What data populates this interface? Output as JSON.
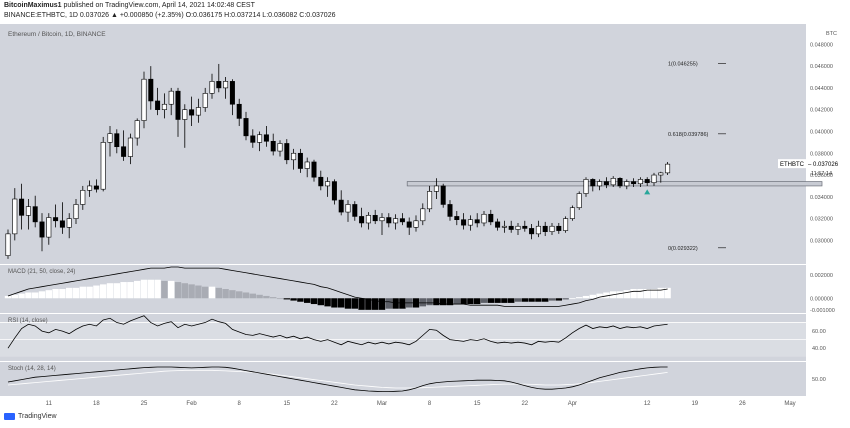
{
  "header": {
    "user": "BitcoinMaximus1",
    "published": "published on TradingView.com, April 14, 2021 14:02:48 CEST",
    "symbol_line": "BINANCE:ETHBTC, 1D 0.037026 ▲ +0.000850 (+2.35%) O:0.036175 H:0.037214 L:0.036082 C:0.037026"
  },
  "footer": {
    "brand": "TradingView"
  },
  "colors": {
    "background": "#d1d4dc",
    "candle_up": "#ffffff",
    "candle_down": "#000000",
    "line": "#000000",
    "rsi_line": "#000000",
    "stoch_d": "#ffffff",
    "arrow": "#26a69a"
  },
  "chart_data": {
    "type": "candlestick",
    "title": "Ethereum / Bitcoin, 1D, BINANCE",
    "symbol": "ETHBTC",
    "last_price_label": "0.037026",
    "countdown_label": "11:57:14",
    "price_axis": {
      "range": [
        0.0282,
        0.0495
      ],
      "tick_labels": [
        "0.028000",
        "0.030000",
        "0.032000",
        "0.034000",
        "0.036000",
        "0.038000",
        "0.040000",
        "0.042000",
        "0.044000",
        "0.046000",
        "0.048000"
      ],
      "unit_label": "BTC"
    },
    "x_axis": {
      "tick_labels": [
        "11",
        "18",
        "25",
        "Feb",
        "8",
        "15",
        "22",
        "Mar",
        "8",
        "15",
        "22",
        "Apr",
        "12",
        "19",
        "26",
        "May"
      ],
      "tick_candle_index": [
        6,
        13,
        20,
        27,
        34,
        41,
        48,
        55,
        62,
        69,
        76,
        83,
        94,
        101,
        108,
        115
      ]
    },
    "candles": [
      {
        "o": 0.0286,
        "h": 0.031,
        "l": 0.0283,
        "c": 0.0306
      },
      {
        "o": 0.0306,
        "h": 0.0348,
        "l": 0.03,
        "c": 0.0338
      },
      {
        "o": 0.0338,
        "h": 0.0352,
        "l": 0.031,
        "c": 0.0323
      },
      {
        "o": 0.0323,
        "h": 0.0338,
        "l": 0.031,
        "c": 0.0331
      },
      {
        "o": 0.0331,
        "h": 0.0341,
        "l": 0.0312,
        "c": 0.0317
      },
      {
        "o": 0.0317,
        "h": 0.0325,
        "l": 0.029,
        "c": 0.0303
      },
      {
        "o": 0.0303,
        "h": 0.0325,
        "l": 0.0296,
        "c": 0.0321
      },
      {
        "o": 0.0321,
        "h": 0.0333,
        "l": 0.0312,
        "c": 0.0318
      },
      {
        "o": 0.0318,
        "h": 0.0335,
        "l": 0.0306,
        "c": 0.0312
      },
      {
        "o": 0.0312,
        "h": 0.0325,
        "l": 0.0302,
        "c": 0.032
      },
      {
        "o": 0.032,
        "h": 0.0338,
        "l": 0.0315,
        "c": 0.0333
      },
      {
        "o": 0.0333,
        "h": 0.035,
        "l": 0.0328,
        "c": 0.0346
      },
      {
        "o": 0.0346,
        "h": 0.0355,
        "l": 0.034,
        "c": 0.035
      },
      {
        "o": 0.035,
        "h": 0.0356,
        "l": 0.0344,
        "c": 0.0347
      },
      {
        "o": 0.0347,
        "h": 0.0395,
        "l": 0.0345,
        "c": 0.039
      },
      {
        "o": 0.039,
        "h": 0.0405,
        "l": 0.0377,
        "c": 0.0398
      },
      {
        "o": 0.0398,
        "h": 0.0402,
        "l": 0.038,
        "c": 0.0386
      },
      {
        "o": 0.0386,
        "h": 0.0401,
        "l": 0.0373,
        "c": 0.0377
      },
      {
        "o": 0.0377,
        "h": 0.0398,
        "l": 0.037,
        "c": 0.0394
      },
      {
        "o": 0.0394,
        "h": 0.0412,
        "l": 0.0387,
        "c": 0.041
      },
      {
        "o": 0.041,
        "h": 0.0455,
        "l": 0.0403,
        "c": 0.0448
      },
      {
        "o": 0.0448,
        "h": 0.046,
        "l": 0.042,
        "c": 0.0428
      },
      {
        "o": 0.0428,
        "h": 0.044,
        "l": 0.0415,
        "c": 0.042
      },
      {
        "o": 0.042,
        "h": 0.0435,
        "l": 0.0412,
        "c": 0.0425
      },
      {
        "o": 0.0425,
        "h": 0.044,
        "l": 0.0415,
        "c": 0.0437
      },
      {
        "o": 0.0437,
        "h": 0.044,
        "l": 0.0395,
        "c": 0.0411
      },
      {
        "o": 0.0411,
        "h": 0.0425,
        "l": 0.0385,
        "c": 0.042
      },
      {
        "o": 0.042,
        "h": 0.0432,
        "l": 0.0405,
        "c": 0.0415
      },
      {
        "o": 0.0415,
        "h": 0.043,
        "l": 0.0408,
        "c": 0.0422
      },
      {
        "o": 0.0422,
        "h": 0.044,
        "l": 0.0418,
        "c": 0.0435
      },
      {
        "o": 0.0435,
        "h": 0.0453,
        "l": 0.043,
        "c": 0.0446
      },
      {
        "o": 0.0446,
        "h": 0.0462,
        "l": 0.0436,
        "c": 0.044
      },
      {
        "o": 0.044,
        "h": 0.045,
        "l": 0.043,
        "c": 0.0446
      },
      {
        "o": 0.0446,
        "h": 0.0448,
        "l": 0.0415,
        "c": 0.0425
      },
      {
        "o": 0.0425,
        "h": 0.043,
        "l": 0.0405,
        "c": 0.0412
      },
      {
        "o": 0.0412,
        "h": 0.0418,
        "l": 0.0392,
        "c": 0.0396
      },
      {
        "o": 0.0396,
        "h": 0.0402,
        "l": 0.0385,
        "c": 0.039
      },
      {
        "o": 0.039,
        "h": 0.04,
        "l": 0.0382,
        "c": 0.0397
      },
      {
        "o": 0.0397,
        "h": 0.0405,
        "l": 0.0386,
        "c": 0.0391
      },
      {
        "o": 0.0391,
        "h": 0.0398,
        "l": 0.0378,
        "c": 0.0382
      },
      {
        "o": 0.0382,
        "h": 0.0392,
        "l": 0.0377,
        "c": 0.0389
      },
      {
        "o": 0.0389,
        "h": 0.0393,
        "l": 0.037,
        "c": 0.0374
      },
      {
        "o": 0.0374,
        "h": 0.0384,
        "l": 0.0365,
        "c": 0.038
      },
      {
        "o": 0.038,
        "h": 0.0384,
        "l": 0.0362,
        "c": 0.0366
      },
      {
        "o": 0.0366,
        "h": 0.0376,
        "l": 0.0358,
        "c": 0.0372
      },
      {
        "o": 0.0372,
        "h": 0.0374,
        "l": 0.0354,
        "c": 0.0358
      },
      {
        "o": 0.0358,
        "h": 0.0364,
        "l": 0.0346,
        "c": 0.035
      },
      {
        "o": 0.035,
        "h": 0.0358,
        "l": 0.034,
        "c": 0.0354
      },
      {
        "o": 0.0354,
        "h": 0.0356,
        "l": 0.0333,
        "c": 0.0337
      },
      {
        "o": 0.0337,
        "h": 0.0346,
        "l": 0.0323,
        "c": 0.0326
      },
      {
        "o": 0.0326,
        "h": 0.0337,
        "l": 0.0317,
        "c": 0.0333
      },
      {
        "o": 0.0333,
        "h": 0.0336,
        "l": 0.0318,
        "c": 0.0322
      },
      {
        "o": 0.0322,
        "h": 0.033,
        "l": 0.0312,
        "c": 0.0316
      },
      {
        "o": 0.0316,
        "h": 0.0326,
        "l": 0.031,
        "c": 0.0323
      },
      {
        "o": 0.0323,
        "h": 0.0328,
        "l": 0.0315,
        "c": 0.0318
      },
      {
        "o": 0.0318,
        "h": 0.0325,
        "l": 0.0305,
        "c": 0.0321
      },
      {
        "o": 0.0321,
        "h": 0.0325,
        "l": 0.0312,
        "c": 0.0316
      },
      {
        "o": 0.0316,
        "h": 0.0324,
        "l": 0.031,
        "c": 0.032
      },
      {
        "o": 0.032,
        "h": 0.0325,
        "l": 0.0314,
        "c": 0.0317
      },
      {
        "o": 0.0317,
        "h": 0.0321,
        "l": 0.0305,
        "c": 0.0312
      },
      {
        "o": 0.0312,
        "h": 0.0323,
        "l": 0.0308,
        "c": 0.0318
      },
      {
        "o": 0.0318,
        "h": 0.0334,
        "l": 0.0314,
        "c": 0.0329
      },
      {
        "o": 0.0329,
        "h": 0.035,
        "l": 0.0326,
        "c": 0.0345
      },
      {
        "o": 0.0345,
        "h": 0.0357,
        "l": 0.0338,
        "c": 0.035
      },
      {
        "o": 0.035,
        "h": 0.0352,
        "l": 0.033,
        "c": 0.0333
      },
      {
        "o": 0.0333,
        "h": 0.0337,
        "l": 0.0318,
        "c": 0.0322
      },
      {
        "o": 0.0322,
        "h": 0.0327,
        "l": 0.0314,
        "c": 0.0319
      },
      {
        "o": 0.0319,
        "h": 0.0325,
        "l": 0.031,
        "c": 0.0314
      },
      {
        "o": 0.0314,
        "h": 0.0323,
        "l": 0.0309,
        "c": 0.0319
      },
      {
        "o": 0.0319,
        "h": 0.0325,
        "l": 0.0312,
        "c": 0.0316
      },
      {
        "o": 0.0316,
        "h": 0.0327,
        "l": 0.0313,
        "c": 0.0324
      },
      {
        "o": 0.0324,
        "h": 0.0328,
        "l": 0.0314,
        "c": 0.0317
      },
      {
        "o": 0.0317,
        "h": 0.032,
        "l": 0.0309,
        "c": 0.0312
      },
      {
        "o": 0.0312,
        "h": 0.0318,
        "l": 0.0307,
        "c": 0.0313
      },
      {
        "o": 0.0313,
        "h": 0.0318,
        "l": 0.0307,
        "c": 0.031
      },
      {
        "o": 0.031,
        "h": 0.0316,
        "l": 0.0305,
        "c": 0.0313
      },
      {
        "o": 0.0313,
        "h": 0.0318,
        "l": 0.0308,
        "c": 0.0311
      },
      {
        "o": 0.0311,
        "h": 0.0315,
        "l": 0.0301,
        "c": 0.0306
      },
      {
        "o": 0.0306,
        "h": 0.0318,
        "l": 0.0303,
        "c": 0.0313
      },
      {
        "o": 0.0313,
        "h": 0.0317,
        "l": 0.0304,
        "c": 0.0308
      },
      {
        "o": 0.0308,
        "h": 0.0316,
        "l": 0.0305,
        "c": 0.0313
      },
      {
        "o": 0.0313,
        "h": 0.0316,
        "l": 0.0306,
        "c": 0.0309
      },
      {
        "o": 0.0309,
        "h": 0.0322,
        "l": 0.0307,
        "c": 0.032
      },
      {
        "o": 0.032,
        "h": 0.0332,
        "l": 0.0318,
        "c": 0.033
      },
      {
        "o": 0.033,
        "h": 0.0345,
        "l": 0.0328,
        "c": 0.0343
      },
      {
        "o": 0.0343,
        "h": 0.0358,
        "l": 0.034,
        "c": 0.0356
      },
      {
        "o": 0.0356,
        "h": 0.0357,
        "l": 0.0345,
        "c": 0.035
      },
      {
        "o": 0.035,
        "h": 0.0356,
        "l": 0.0346,
        "c": 0.0354
      },
      {
        "o": 0.0354,
        "h": 0.0358,
        "l": 0.0348,
        "c": 0.0351
      },
      {
        "o": 0.0351,
        "h": 0.0359,
        "l": 0.0349,
        "c": 0.0357
      },
      {
        "o": 0.0357,
        "h": 0.0358,
        "l": 0.0348,
        "c": 0.035
      },
      {
        "o": 0.035,
        "h": 0.0356,
        "l": 0.0347,
        "c": 0.0354
      },
      {
        "o": 0.0354,
        "h": 0.0357,
        "l": 0.0349,
        "c": 0.0352
      },
      {
        "o": 0.0352,
        "h": 0.0358,
        "l": 0.0349,
        "c": 0.0356
      },
      {
        "o": 0.0356,
        "h": 0.0358,
        "l": 0.035,
        "c": 0.0353
      },
      {
        "o": 0.0353,
        "h": 0.0362,
        "l": 0.035,
        "c": 0.036
      },
      {
        "o": 0.036,
        "h": 0.0363,
        "l": 0.0353,
        "c": 0.0362
      },
      {
        "o": 0.0362,
        "h": 0.0372,
        "l": 0.036,
        "c": 0.037
      }
    ],
    "resistance_zone": {
      "from_candle": 59,
      "to_candle": 120,
      "low": 0.035,
      "high": 0.0354
    },
    "arrow": {
      "candle": 94,
      "price": 0.0345
    },
    "fib_levels": [
      {
        "label": "1(0.046255)",
        "price": 0.046255
      },
      {
        "label": "0.618(0.039786)",
        "price": 0.039786
      },
      {
        "label": "0(0.029322)",
        "price": 0.029322
      }
    ],
    "macd": {
      "title": "MACD (21, 50, close, 24)",
      "axis_labels": [
        "0.002000",
        "0.000000",
        "-0.001000"
      ],
      "range": [
        -0.0011,
        0.0027
      ],
      "histogram": [
        0.0002,
        0.0003,
        0.0004,
        0.0005,
        0.0005,
        0.0006,
        0.0007,
        0.0008,
        0.0008,
        0.0009,
        0.0009,
        0.001,
        0.001,
        0.0011,
        0.0012,
        0.0013,
        0.0013,
        0.0014,
        0.0014,
        0.0015,
        0.0016,
        0.0016,
        0.0016,
        0.0015,
        0.0015,
        0.0014,
        0.0013,
        0.0012,
        0.0011,
        0.001,
        0.001,
        0.0009,
        0.0008,
        0.0007,
        0.0006,
        0.0005,
        0.0004,
        0.0003,
        0.0002,
        0.0001,
        0.0,
        -0.0001,
        -0.0002,
        -0.0003,
        -0.0004,
        -0.0005,
        -0.0006,
        -0.0007,
        -0.0008,
        -0.0008,
        -0.0009,
        -0.0009,
        -0.001,
        -0.001,
        -0.001,
        -0.001,
        -0.0009,
        -0.0009,
        -0.0009,
        -0.0008,
        -0.0008,
        -0.0007,
        -0.0006,
        -0.0006,
        -0.0006,
        -0.0006,
        -0.0005,
        -0.0005,
        -0.0005,
        -0.0005,
        -0.0004,
        -0.0004,
        -0.0004,
        -0.0004,
        -0.0004,
        -0.0003,
        -0.0003,
        -0.0003,
        -0.0003,
        -0.0003,
        -0.0002,
        -0.0002,
        -0.0001,
        0.0,
        0.0001,
        0.0002,
        0.0003,
        0.0004,
        0.0005,
        0.0006,
        0.0006,
        0.0007,
        0.0008,
        0.0008,
        0.0008,
        0.0008,
        0.0009,
        0.0009
      ],
      "line": [
        0.0002,
        0.0004,
        0.0006,
        0.0008,
        0.0009,
        0.001,
        0.0011,
        0.0012,
        0.0013,
        0.0014,
        0.0015,
        0.0016,
        0.0017,
        0.0018,
        0.0019,
        0.002,
        0.0021,
        0.0022,
        0.0023,
        0.0024,
        0.0025,
        0.0026,
        0.0026,
        0.0026,
        0.0027,
        0.0027,
        0.0026,
        0.0026,
        0.0026,
        0.0026,
        0.0026,
        0.0026,
        0.0025,
        0.0024,
        0.0023,
        0.0022,
        0.0021,
        0.002,
        0.0019,
        0.0018,
        0.0017,
        0.0016,
        0.0015,
        0.0014,
        0.0013,
        0.0012,
        0.001,
        0.0009,
        0.0007,
        0.0005,
        0.0003,
        0.0001,
        0.0,
        -0.0001,
        -0.0002,
        -0.0003,
        -0.0003,
        -0.0004,
        -0.0004,
        -0.0004,
        -0.0004,
        -0.0004,
        -0.0004,
        -0.0004,
        -0.0005,
        -0.0005,
        -0.0005,
        -0.0005,
        -0.0006,
        -0.0006,
        -0.0006,
        -0.0006,
        -0.0006,
        -0.0007,
        -0.0007,
        -0.0007,
        -0.0007,
        -0.0007,
        -0.0007,
        -0.0007,
        -0.0007,
        -0.0007,
        -0.0006,
        -0.0005,
        -0.0004,
        -0.0002,
        -0.0001,
        0.0001,
        0.0002,
        0.0003,
        0.0004,
        0.0005,
        0.0006,
        0.0006,
        0.0007,
        0.0007,
        0.0007,
        0.0008
      ]
    },
    "rsi": {
      "title": "RSI (14, close)",
      "axis_labels": [
        "60.00",
        "40.00"
      ],
      "range": [
        25,
        80
      ],
      "values": [
        40,
        52,
        63,
        68,
        66,
        60,
        58,
        62,
        60,
        57,
        62,
        66,
        68,
        66,
        73,
        75,
        70,
        68,
        72,
        75,
        78,
        70,
        66,
        69,
        71,
        64,
        68,
        66,
        68,
        70,
        74,
        71,
        69,
        62,
        59,
        56,
        55,
        57,
        55,
        53,
        55,
        52,
        54,
        51,
        53,
        50,
        48,
        50,
        47,
        44,
        48,
        46,
        44,
        47,
        45,
        47,
        45,
        47,
        46,
        44,
        48,
        55,
        62,
        61,
        55,
        50,
        49,
        48,
        50,
        49,
        51,
        48,
        46,
        47,
        46,
        47,
        46,
        44,
        48,
        47,
        48,
        47,
        52,
        58,
        63,
        67,
        63,
        65,
        64,
        66,
        63,
        65,
        64,
        65,
        63,
        66,
        67,
        68
      ]
    },
    "stoch": {
      "title": "Stoch (14, 28, 14)",
      "axis_labels": [
        "50.00"
      ],
      "range": [
        0,
        100
      ],
      "k": [
        40,
        44,
        48,
        52,
        56,
        58,
        60,
        62,
        64,
        66,
        68,
        70,
        72,
        74,
        76,
        78,
        80,
        82,
        84,
        86,
        88,
        89,
        90,
        90,
        90,
        89,
        88,
        87,
        88,
        89,
        90,
        90,
        89,
        86,
        82,
        78,
        74,
        70,
        66,
        62,
        58,
        54,
        50,
        46,
        42,
        38,
        34,
        30,
        26,
        22,
        18,
        14,
        12,
        10,
        9,
        8,
        8,
        9,
        10,
        14,
        20,
        28,
        34,
        38,
        40,
        42,
        43,
        44,
        45,
        46,
        46,
        46,
        45,
        44,
        40,
        34,
        28,
        22,
        18,
        16,
        16,
        18,
        20,
        24,
        30,
        38,
        46,
        54,
        60,
        66,
        72,
        76,
        80,
        84,
        87,
        89,
        90,
        90
      ],
      "d": [
        30,
        32,
        34,
        36,
        38,
        40,
        42,
        44,
        46,
        48,
        50,
        52,
        54,
        56,
        58,
        60,
        62,
        64,
        66,
        68,
        70,
        72,
        74,
        76,
        77,
        78,
        79,
        79,
        79,
        79,
        79,
        78,
        77,
        76,
        75,
        74,
        72,
        70,
        68,
        66,
        63,
        60,
        57,
        54,
        51,
        48,
        45,
        42,
        39,
        36,
        33,
        30,
        28,
        26,
        24,
        22,
        21,
        20,
        20,
        20,
        20,
        21,
        22,
        23,
        24,
        25,
        26,
        27,
        28,
        29,
        30,
        31,
        32,
        33,
        33,
        33,
        33,
        32,
        31,
        30,
        30,
        30,
        31,
        32,
        34,
        36,
        39,
        42,
        45,
        48,
        51,
        54,
        57,
        60,
        63,
        66,
        69,
        72
      ]
    }
  }
}
